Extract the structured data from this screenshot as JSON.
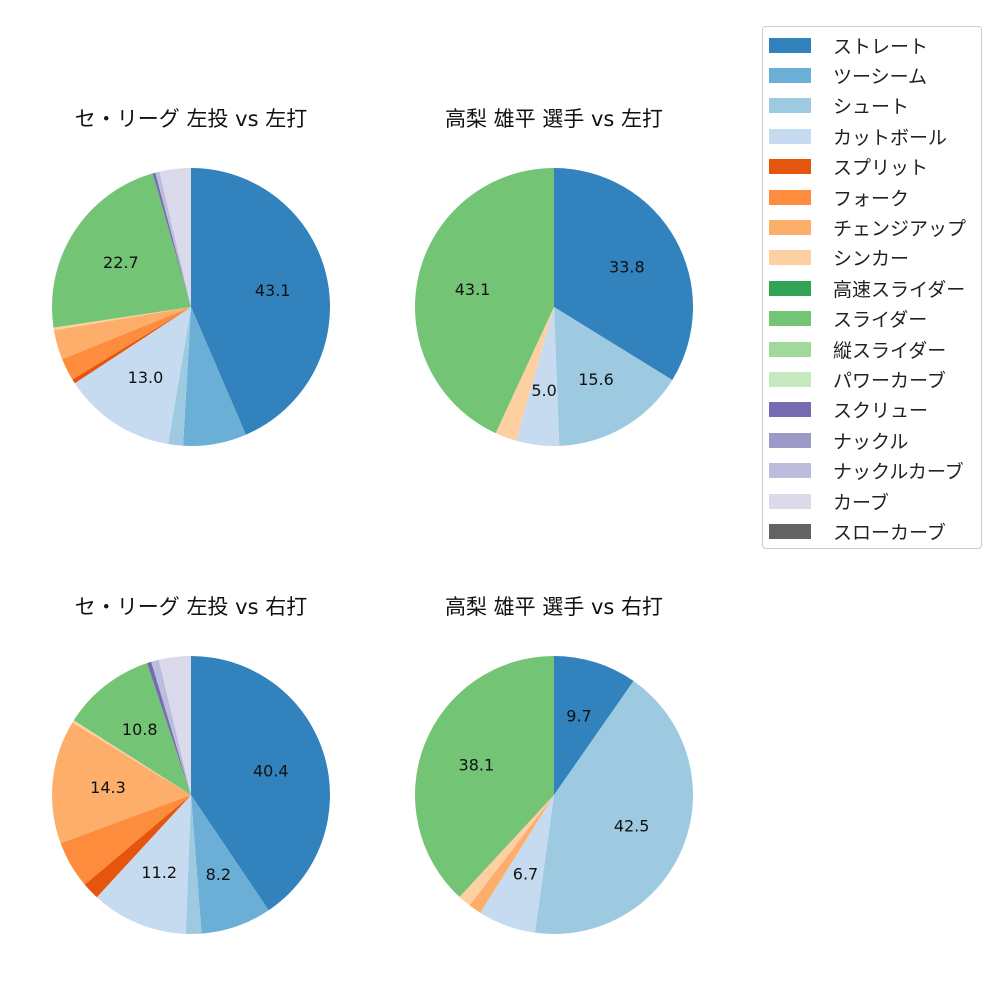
{
  "colors": {
    "ストレート": "#3182bd",
    "ツーシーム": "#6baed6",
    "シュート": "#9ecae1",
    "カットボール": "#c6dbef",
    "スプリット": "#e6550d",
    "フォーク": "#fd8d3c",
    "チェンジアップ": "#fdae6b",
    "シンカー": "#fdd0a2",
    "高速スライダー": "#31a354",
    "スライダー": "#74c476",
    "縦スライダー": "#a1d99b",
    "パワーカーブ": "#c7e9c0",
    "スクリュー": "#756bb1",
    "ナックル": "#9e9ac8",
    "ナックルカーブ": "#bcbddc",
    "カーブ": "#dadaeb",
    "スローカーブ": "#636363"
  },
  "legend": {
    "items": [
      "ストレート",
      "ツーシーム",
      "シュート",
      "カットボール",
      "スプリット",
      "フォーク",
      "チェンジアップ",
      "シンカー",
      "高速スライダー",
      "スライダー",
      "縦スライダー",
      "パワーカーブ",
      "スクリュー",
      "ナックル",
      "ナックルカーブ",
      "カーブ",
      "スローカーブ"
    ]
  },
  "chart_data": [
    {
      "type": "pie",
      "title": "セ・リーグ 左投 vs 左打",
      "slices": [
        {
          "label": "ストレート",
          "value": 43.1,
          "shown": "43.1"
        },
        {
          "label": "ツーシーム",
          "value": 7.3
        },
        {
          "label": "シュート",
          "value": 1.7
        },
        {
          "label": "カットボール",
          "value": 13.0,
          "shown": "13.0"
        },
        {
          "label": "スプリット",
          "value": 0.5
        },
        {
          "label": "フォーク",
          "value": 2.6
        },
        {
          "label": "チェンジアップ",
          "value": 3.4
        },
        {
          "label": "シンカー",
          "value": 0.3
        },
        {
          "label": "スライダー",
          "value": 22.7,
          "shown": "22.7"
        },
        {
          "label": "スクリュー",
          "value": 0.3
        },
        {
          "label": "ナックルカーブ",
          "value": 0.5
        },
        {
          "label": "カーブ",
          "value": 3.6
        }
      ]
    },
    {
      "type": "pie",
      "title": "高梨 雄平 選手 vs 左打",
      "slices": [
        {
          "label": "ストレート",
          "value": 33.8,
          "shown": "33.8"
        },
        {
          "label": "シュート",
          "value": 15.6,
          "shown": "15.6"
        },
        {
          "label": "カットボール",
          "value": 5.0,
          "shown": "5.0"
        },
        {
          "label": "シンカー",
          "value": 2.5
        },
        {
          "label": "スライダー",
          "value": 43.1,
          "shown": "43.1"
        }
      ]
    },
    {
      "type": "pie",
      "title": "セ・リーグ 左投 vs 右打",
      "slices": [
        {
          "label": "ストレート",
          "value": 40.4,
          "shown": "40.4"
        },
        {
          "label": "ツーシーム",
          "value": 8.2,
          "shown": "8.2"
        },
        {
          "label": "シュート",
          "value": 1.8
        },
        {
          "label": "カットボール",
          "value": 11.2,
          "shown": "11.2"
        },
        {
          "label": "スプリット",
          "value": 2.0
        },
        {
          "label": "フォーク",
          "value": 5.5
        },
        {
          "label": "チェンジアップ",
          "value": 14.3,
          "shown": "14.3"
        },
        {
          "label": "シンカー",
          "value": 0.3
        },
        {
          "label": "スライダー",
          "value": 10.8,
          "shown": "10.8"
        },
        {
          "label": "スクリュー",
          "value": 0.5
        },
        {
          "label": "ナックルカーブ",
          "value": 0.9
        },
        {
          "label": "カーブ",
          "value": 3.7
        }
      ]
    },
    {
      "type": "pie",
      "title": "高梨 雄平 選手 vs 右打",
      "slices": [
        {
          "label": "ストレート",
          "value": 9.7,
          "shown": "9.7"
        },
        {
          "label": "シュート",
          "value": 42.5,
          "shown": "42.5"
        },
        {
          "label": "カットボール",
          "value": 6.7,
          "shown": "6.7"
        },
        {
          "label": "チェンジアップ",
          "value": 1.5
        },
        {
          "label": "シンカー",
          "value": 1.5
        },
        {
          "label": "スライダー",
          "value": 38.1,
          "shown": "38.1"
        }
      ]
    }
  ]
}
